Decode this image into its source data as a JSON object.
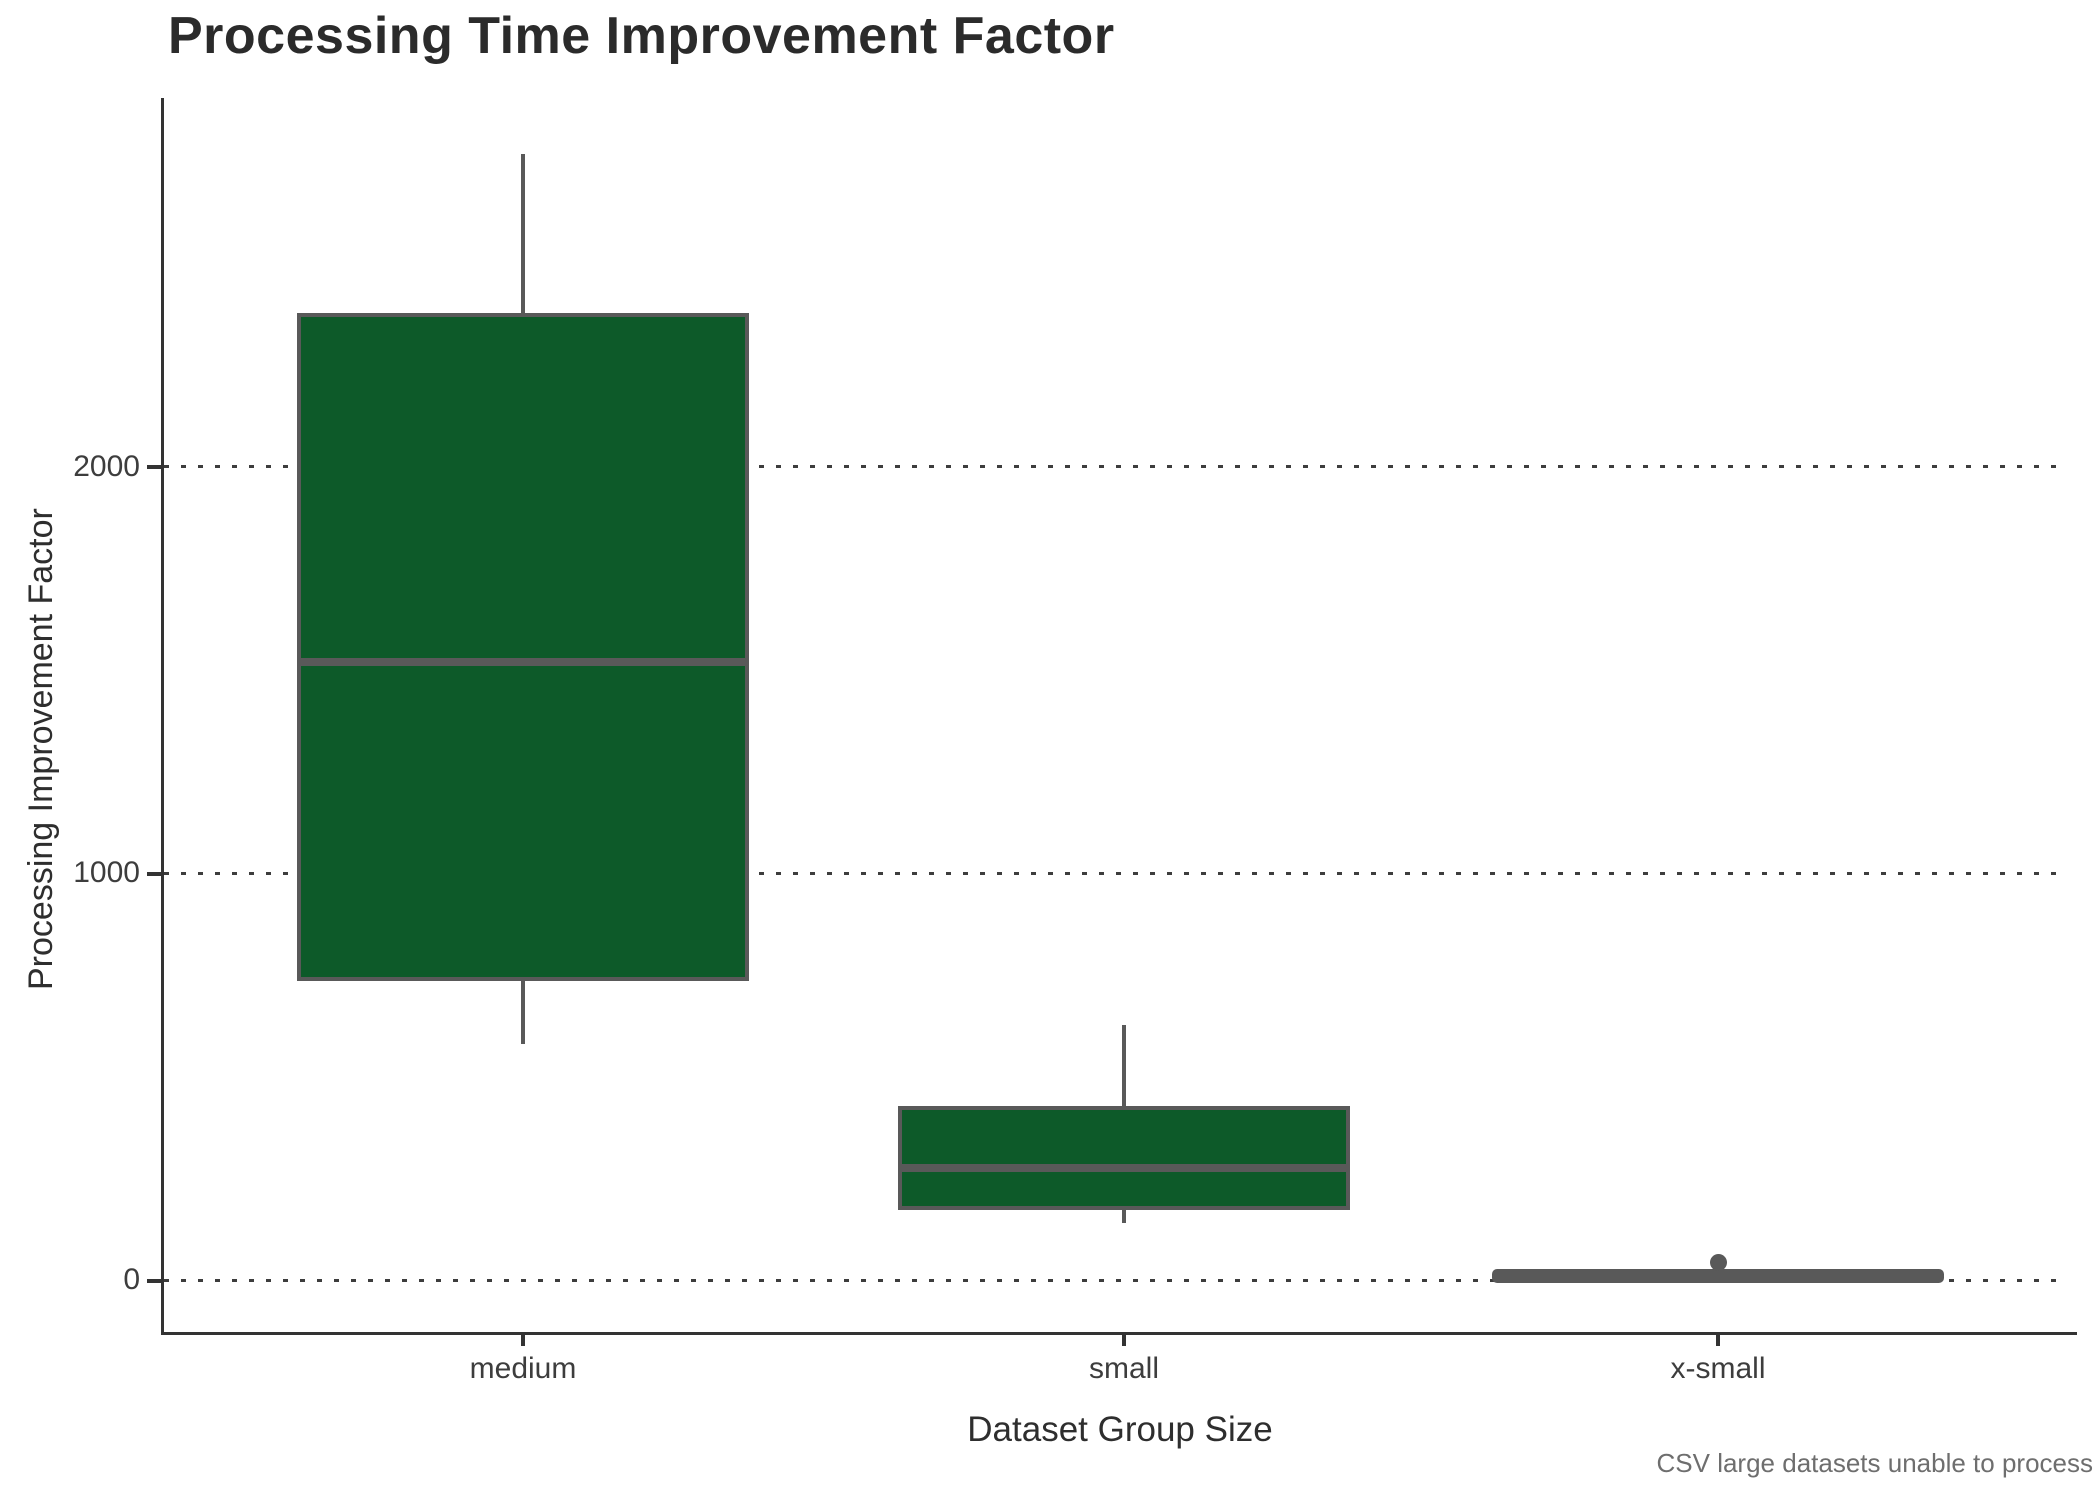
{
  "title": "Processing Time Improvement Factor",
  "caption": "CSV large datasets unable to process",
  "axes": {
    "y_label": "Processing Improvement Factor",
    "x_label": "Dataset Group Size",
    "y_ticks": [
      "2000",
      "1000",
      "0"
    ],
    "x_ticks": [
      "medium",
      "small",
      "x-small"
    ]
  },
  "colors": {
    "box_fill": "#0d5a29",
    "box_border": "#595959",
    "axis": "#333333",
    "tick_text": "#3d3d3d",
    "title_text": "#2b2b2b",
    "caption_text": "#6e6e6e",
    "background": "#ffffff"
  },
  "chart_data": {
    "type": "boxplot",
    "title": "Processing Time Improvement Factor",
    "xlabel": "Dataset Group Size",
    "ylabel": "Processing Improvement Factor",
    "categories": [
      "medium",
      "small",
      "x-small"
    ],
    "ylim": [
      -130,
      2900
    ],
    "y_gridlines": [
      0,
      1000,
      2000
    ],
    "grid_style": "horizontal dotted",
    "legend": "none",
    "series": [
      {
        "category": "medium",
        "whisker_low": 580,
        "q1": 735,
        "median": 1520,
        "q3": 2380,
        "whisker_high": 2770,
        "outliers": []
      },
      {
        "category": "small",
        "whisker_low": 140,
        "q1": 172,
        "median": 276,
        "q3": 428,
        "whisker_high": 627,
        "outliers": []
      },
      {
        "category": "x-small",
        "whisker_low": 2,
        "q1": 4,
        "median": 9,
        "q3": 16,
        "whisker_high": 25,
        "outliers": [
          44
        ]
      }
    ]
  }
}
